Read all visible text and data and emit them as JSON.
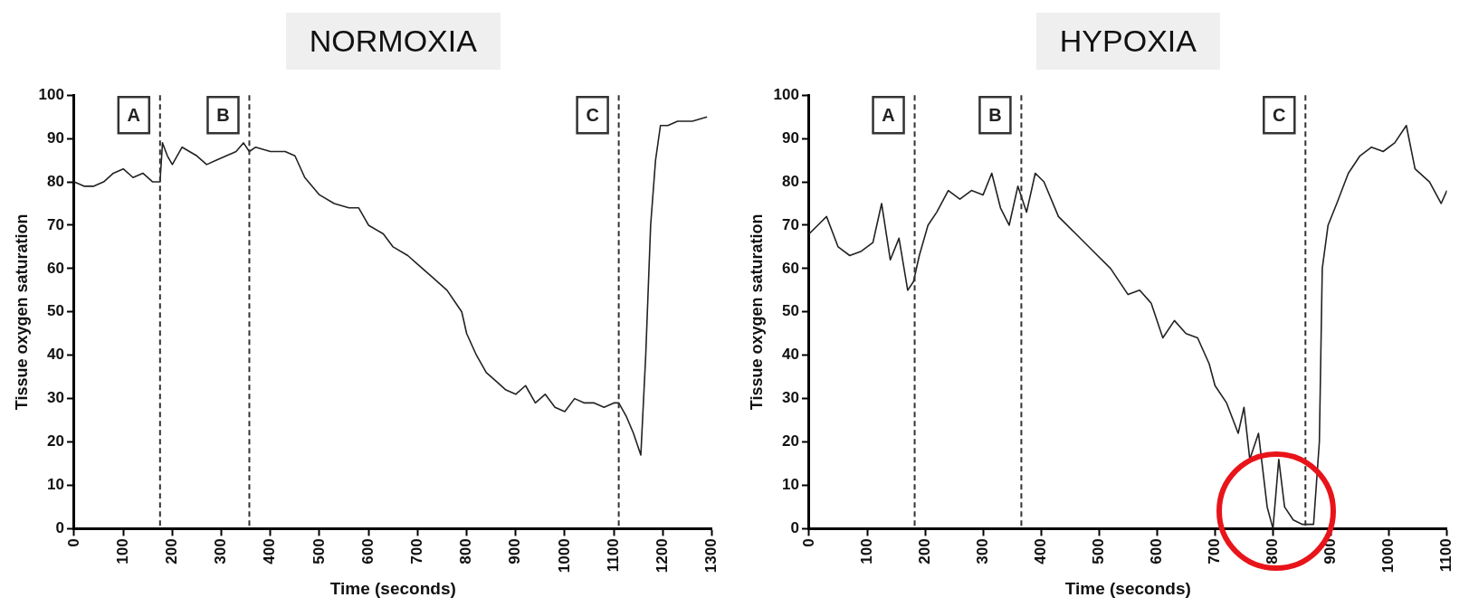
{
  "chart_data": [
    {
      "type": "line",
      "title": "NORMOXIA",
      "xlabel": "Time (seconds)",
      "ylabel": "Tissue oxygen saturation",
      "xlim": [
        0,
        1300
      ],
      "xticks": [
        0,
        100,
        200,
        300,
        400,
        500,
        600,
        700,
        800,
        900,
        1000,
        1100,
        1200,
        1300
      ],
      "ylim": [
        0,
        100
      ],
      "yticks": [
        0,
        10,
        20,
        30,
        40,
        50,
        60,
        70,
        80,
        90,
        100
      ],
      "grid": false,
      "legend": false,
      "marker": "none",
      "line_style": "solid",
      "x": [
        0,
        20,
        40,
        60,
        80,
        100,
        120,
        140,
        160,
        175,
        180,
        190,
        200,
        220,
        250,
        270,
        290,
        310,
        330,
        345,
        357,
        370,
        400,
        430,
        450,
        470,
        500,
        530,
        560,
        580,
        600,
        630,
        650,
        680,
        700,
        730,
        760,
        790,
        800,
        820,
        840,
        860,
        880,
        900,
        920,
        940,
        960,
        980,
        1000,
        1020,
        1040,
        1060,
        1080,
        1100,
        1110,
        1125,
        1140,
        1155,
        1165,
        1175,
        1185,
        1195,
        1210,
        1230,
        1260,
        1290
      ],
      "series": [
        {
          "color": "#222222",
          "values": [
            80,
            79,
            79,
            80,
            82,
            83,
            81,
            82,
            80,
            80,
            89,
            86,
            84,
            88,
            86,
            84,
            85,
            86,
            87,
            89,
            87,
            88,
            87,
            87,
            86,
            81,
            77,
            75,
            74,
            74,
            70,
            68,
            65,
            63,
            61,
            58,
            55,
            50,
            45,
            40,
            36,
            34,
            32,
            31,
            33,
            29,
            31,
            28,
            27,
            30,
            29,
            29,
            28,
            29,
            29,
            26,
            22,
            17,
            40,
            70,
            85,
            93,
            93,
            94,
            94,
            95
          ]
        }
      ],
      "ref_lines": [
        {
          "axis": "x",
          "value": 175,
          "label": "A",
          "color": "#333333",
          "line_style": "dashed"
        },
        {
          "axis": "x",
          "value": 357,
          "label": "B",
          "color": "#333333",
          "line_style": "dashed"
        },
        {
          "axis": "x",
          "value": 1110,
          "label": "C",
          "color": "#333333",
          "line_style": "dashed"
        }
      ]
    },
    {
      "type": "line",
      "title": "HYPOXIA",
      "xlabel": "Time (seconds)",
      "ylabel": "Tissue oxygen saturation",
      "xlim": [
        0,
        1100
      ],
      "xticks": [
        0,
        100,
        200,
        300,
        400,
        500,
        600,
        700,
        800,
        900,
        1000,
        1100
      ],
      "ylim": [
        0,
        100
      ],
      "yticks": [
        0,
        10,
        20,
        30,
        40,
        50,
        60,
        70,
        80,
        90,
        100
      ],
      "grid": false,
      "legend": false,
      "marker": "none",
      "line_style": "solid",
      "x": [
        0,
        15,
        30,
        50,
        70,
        90,
        110,
        125,
        140,
        155,
        170,
        180,
        190,
        205,
        220,
        240,
        260,
        280,
        300,
        315,
        330,
        345,
        360,
        375,
        390,
        405,
        430,
        460,
        490,
        520,
        550,
        570,
        590,
        610,
        630,
        650,
        670,
        690,
        700,
        720,
        740,
        750,
        760,
        775,
        790,
        800,
        810,
        820,
        835,
        850,
        870,
        880,
        885,
        895,
        910,
        930,
        950,
        970,
        990,
        1010,
        1030,
        1045,
        1070,
        1090,
        1100
      ],
      "series": [
        {
          "color": "#222222",
          "values": [
            68,
            70,
            72,
            65,
            63,
            64,
            66,
            75,
            62,
            67,
            55,
            57,
            63,
            70,
            73,
            78,
            76,
            78,
            77,
            82,
            74,
            70,
            79,
            73,
            82,
            80,
            72,
            68,
            64,
            60,
            54,
            55,
            52,
            44,
            48,
            45,
            44,
            38,
            33,
            29,
            22,
            28,
            16,
            22,
            5,
            0,
            16,
            5,
            2,
            1,
            1,
            20,
            60,
            70,
            75,
            82,
            86,
            88,
            87,
            89,
            93,
            83,
            80,
            75,
            78
          ]
        }
      ],
      "ref_lines": [
        {
          "axis": "x",
          "value": 182,
          "label": "A",
          "color": "#333333",
          "line_style": "dashed"
        },
        {
          "axis": "x",
          "value": 366,
          "label": "B",
          "color": "#333333",
          "line_style": "dashed"
        },
        {
          "axis": "x",
          "value": 856,
          "label": "C",
          "color": "#333333",
          "line_style": "dashed"
        }
      ]
    }
  ]
}
